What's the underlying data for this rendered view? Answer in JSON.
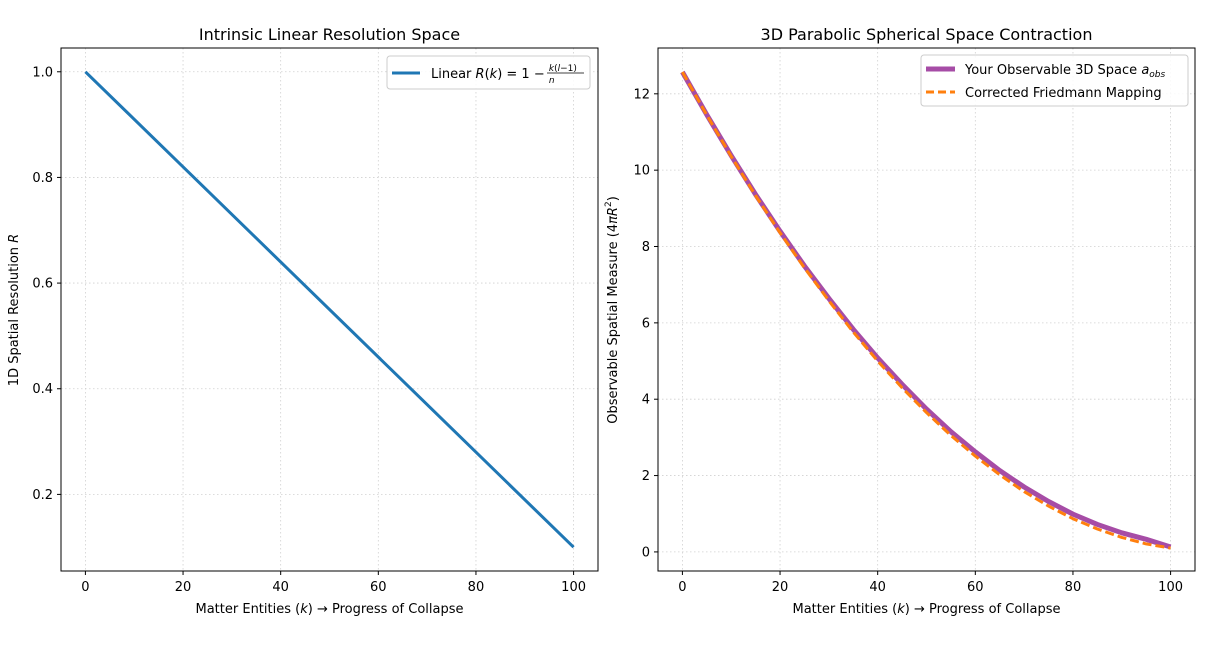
{
  "chart_data": [
    {
      "type": "line",
      "title": "Intrinsic Linear Resolution Space",
      "xlabel": "Matter Entities (k) → Progress of Collapse",
      "ylabel": "1D Spatial Resolution R",
      "xlim": [
        -5,
        105
      ],
      "ylim": [
        0.055,
        1.045
      ],
      "xticks": [
        0,
        20,
        40,
        60,
        80,
        100
      ],
      "yticks": [
        0.2,
        0.4,
        0.6,
        0.8,
        1.0
      ],
      "xtick_labels": [
        "0",
        "20",
        "40",
        "60",
        "80",
        "100"
      ],
      "ytick_labels": [
        "0.2",
        "0.4",
        "0.6",
        "0.8",
        "1.0"
      ],
      "grid": true,
      "legend_position": "top-right",
      "series": [
        {
          "name": "Linear R(k) = 1 − k(l−1)/n",
          "color": "#1f77b4",
          "style": "solid",
          "x": [
            0,
            100
          ],
          "y": [
            1.0,
            0.1
          ]
        }
      ]
    },
    {
      "type": "line",
      "title": "3D Parabolic Spherical Space Contraction",
      "xlabel": "Matter Entities (k) → Progress of Collapse",
      "ylabel": "Observable Spatial Measure (4πR²)",
      "xlim": [
        -5,
        105
      ],
      "ylim": [
        -0.5,
        13.2
      ],
      "xticks": [
        0,
        20,
        40,
        60,
        80,
        100
      ],
      "yticks": [
        0,
        2,
        4,
        6,
        8,
        10,
        12
      ],
      "xtick_labels": [
        "0",
        "20",
        "40",
        "60",
        "80",
        "100"
      ],
      "ytick_labels": [
        "0",
        "2",
        "4",
        "6",
        "8",
        "10",
        "12"
      ],
      "grid": true,
      "legend_position": "top-right",
      "series": [
        {
          "name": "Your Observable 3D Space a_obs",
          "color": "#a64ca6",
          "style": "solid",
          "x": [
            0,
            5,
            10,
            15,
            20,
            25,
            30,
            35,
            40,
            45,
            50,
            55,
            60,
            65,
            70,
            75,
            80,
            85,
            90,
            95,
            100
          ],
          "y": [
            12.57,
            11.45,
            10.38,
            9.36,
            8.4,
            7.49,
            6.64,
            5.83,
            5.08,
            4.39,
            3.74,
            3.15,
            2.62,
            2.13,
            1.7,
            1.32,
            0.99,
            0.72,
            0.5,
            0.33,
            0.13
          ]
        },
        {
          "name": "Corrected Friedmann Mapping",
          "color": "#ff7f0e",
          "style": "dashed",
          "x": [
            0,
            5,
            10,
            15,
            20,
            25,
            30,
            35,
            40,
            45,
            50,
            55,
            60,
            65,
            70,
            75,
            80,
            85,
            90,
            95,
            100
          ],
          "y": [
            12.57,
            11.44,
            10.36,
            9.33,
            8.36,
            7.44,
            6.58,
            5.76,
            5.0,
            4.3,
            3.65,
            3.05,
            2.51,
            2.02,
            1.58,
            1.2,
            0.87,
            0.6,
            0.38,
            0.21,
            0.1
          ]
        }
      ]
    }
  ]
}
